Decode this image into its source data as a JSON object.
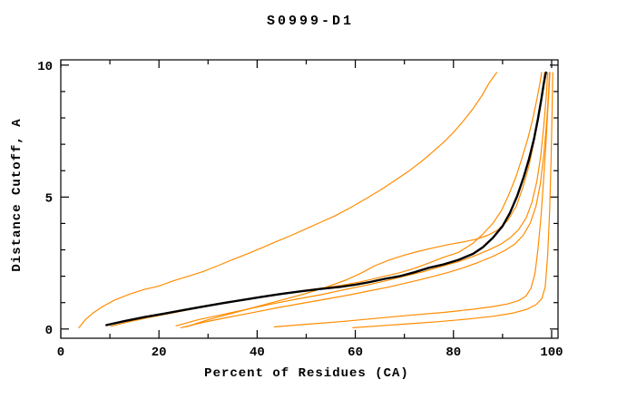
{
  "title": "S0999-D1",
  "background": "#ffffff",
  "chart_data": {
    "type": "line",
    "title": "S0999-D1",
    "xlabel": "Percent of Residues (CA)",
    "ylabel": "Distance Cutoff, A",
    "xlim": [
      0,
      101.3
    ],
    "ylim": [
      -0.35,
      10.2
    ],
    "x_major_ticks": [
      0,
      20,
      40,
      60,
      80,
      100
    ],
    "x_minor_ticks": [
      10,
      30,
      50,
      70,
      90
    ],
    "y_major_ticks": [
      0,
      5,
      10
    ],
    "y_minor_ticks": [
      1,
      2,
      3,
      4,
      6,
      7,
      8,
      9
    ],
    "grid": false,
    "legend_position": "none",
    "colors": {
      "model": "#000000",
      "reference": "#ff8c00"
    },
    "series": [
      {
        "name": "reference-steep",
        "role": "reference",
        "color": "#ff8c00",
        "points": [
          [
            3.7,
            0.05
          ],
          [
            5,
            0.35
          ],
          [
            6.5,
            0.6
          ],
          [
            8.5,
            0.85
          ],
          [
            11,
            1.1
          ],
          [
            14,
            1.32
          ],
          [
            17,
            1.5
          ],
          [
            20,
            1.63
          ],
          [
            23,
            1.83
          ],
          [
            26,
            2.0
          ],
          [
            29,
            2.18
          ],
          [
            32,
            2.4
          ],
          [
            35,
            2.63
          ],
          [
            38,
            2.85
          ],
          [
            41,
            3.08
          ],
          [
            44,
            3.32
          ],
          [
            47,
            3.55
          ],
          [
            50,
            3.8
          ],
          [
            53,
            4.05
          ],
          [
            56,
            4.3
          ],
          [
            59,
            4.6
          ],
          [
            62,
            4.92
          ],
          [
            65,
            5.25
          ],
          [
            68,
            5.62
          ],
          [
            71,
            6.0
          ],
          [
            73.5,
            6.35
          ],
          [
            76,
            6.75
          ],
          [
            78,
            7.08
          ],
          [
            80,
            7.45
          ],
          [
            82,
            7.88
          ],
          [
            84,
            8.35
          ],
          [
            85.8,
            8.85
          ],
          [
            87.2,
            9.3
          ],
          [
            88.3,
            9.6
          ],
          [
            88.8,
            9.72
          ]
        ]
      },
      {
        "name": "reference-hug",
        "role": "reference",
        "color": "#ff8c00",
        "points": [
          [
            10.2,
            0.1
          ],
          [
            14,
            0.28
          ],
          [
            18,
            0.44
          ],
          [
            22,
            0.58
          ],
          [
            26,
            0.73
          ],
          [
            30,
            0.87
          ],
          [
            34,
            1.0
          ],
          [
            38,
            1.13
          ],
          [
            42,
            1.25
          ],
          [
            46,
            1.37
          ],
          [
            50,
            1.47
          ],
          [
            54,
            1.57
          ],
          [
            57,
            1.65
          ],
          [
            60,
            1.75
          ],
          [
            63,
            1.87
          ],
          [
            66,
            2.0
          ],
          [
            69,
            2.13
          ],
          [
            72,
            2.3
          ],
          [
            75,
            2.5
          ],
          [
            78,
            2.72
          ],
          [
            81,
            2.9
          ],
          [
            84,
            3.25
          ],
          [
            86,
            3.6
          ],
          [
            88,
            4.0
          ],
          [
            89.8,
            4.5
          ],
          [
            91.3,
            5.1
          ],
          [
            92.8,
            5.8
          ],
          [
            94,
            6.5
          ],
          [
            95.2,
            7.25
          ],
          [
            96.2,
            8.0
          ],
          [
            97,
            8.7
          ],
          [
            97.6,
            9.3
          ],
          [
            97.95,
            9.72
          ]
        ]
      },
      {
        "name": "reference-upper",
        "role": "reference",
        "color": "#ff8c00",
        "points": [
          [
            25.5,
            0.08
          ],
          [
            30,
            0.35
          ],
          [
            34,
            0.55
          ],
          [
            38,
            0.75
          ],
          [
            42,
            0.95
          ],
          [
            46,
            1.15
          ],
          [
            50,
            1.35
          ],
          [
            54,
            1.58
          ],
          [
            58,
            1.85
          ],
          [
            61,
            2.1
          ],
          [
            64,
            2.4
          ],
          [
            67,
            2.62
          ],
          [
            70,
            2.8
          ],
          [
            73,
            2.95
          ],
          [
            76,
            3.08
          ],
          [
            79,
            3.2
          ],
          [
            82,
            3.3
          ],
          [
            84.5,
            3.4
          ],
          [
            87,
            3.55
          ],
          [
            89,
            3.75
          ],
          [
            91,
            4.1
          ],
          [
            92.8,
            4.65
          ],
          [
            94.2,
            5.4
          ],
          [
            95.4,
            6.2
          ],
          [
            96.4,
            7.1
          ],
          [
            97.3,
            8.0
          ],
          [
            98,
            8.9
          ],
          [
            98.4,
            9.4
          ],
          [
            98.55,
            9.72
          ]
        ]
      },
      {
        "name": "reference-mid1",
        "role": "reference",
        "color": "#ff8c00",
        "points": [
          [
            23.5,
            0.12
          ],
          [
            28,
            0.35
          ],
          [
            33,
            0.55
          ],
          [
            38,
            0.75
          ],
          [
            43,
            0.95
          ],
          [
            48,
            1.13
          ],
          [
            53,
            1.3
          ],
          [
            58,
            1.5
          ],
          [
            62,
            1.65
          ],
          [
            66,
            1.82
          ],
          [
            70,
            2.0
          ],
          [
            74,
            2.18
          ],
          [
            78,
            2.4
          ],
          [
            81,
            2.55
          ],
          [
            84,
            2.75
          ],
          [
            87,
            2.98
          ],
          [
            89.5,
            3.2
          ],
          [
            91.5,
            3.45
          ],
          [
            93.2,
            3.75
          ],
          [
            94.8,
            4.2
          ],
          [
            96,
            4.8
          ],
          [
            97,
            5.6
          ],
          [
            97.8,
            6.6
          ],
          [
            98.4,
            7.7
          ],
          [
            98.9,
            8.8
          ],
          [
            99.2,
            9.72
          ]
        ]
      },
      {
        "name": "reference-mid2",
        "role": "reference",
        "color": "#ff8c00",
        "points": [
          [
            24.5,
            0.05
          ],
          [
            29,
            0.25
          ],
          [
            34,
            0.44
          ],
          [
            39,
            0.62
          ],
          [
            44,
            0.8
          ],
          [
            49,
            0.97
          ],
          [
            54,
            1.13
          ],
          [
            59,
            1.3
          ],
          [
            63,
            1.45
          ],
          [
            67,
            1.6
          ],
          [
            71,
            1.77
          ],
          [
            75,
            1.95
          ],
          [
            79,
            2.15
          ],
          [
            82,
            2.32
          ],
          [
            85,
            2.52
          ],
          [
            88,
            2.75
          ],
          [
            90.5,
            2.98
          ],
          [
            92.5,
            3.22
          ],
          [
            94.2,
            3.55
          ],
          [
            95.6,
            4.0
          ],
          [
            96.8,
            4.65
          ],
          [
            97.7,
            5.5
          ],
          [
            98.4,
            6.6
          ],
          [
            99,
            7.9
          ],
          [
            99.4,
            9.0
          ],
          [
            99.55,
            9.72
          ]
        ]
      },
      {
        "name": "reference-low1",
        "role": "reference",
        "color": "#ff8c00",
        "points": [
          [
            43.5,
            0.08
          ],
          [
            50,
            0.18
          ],
          [
            57,
            0.28
          ],
          [
            64,
            0.4
          ],
          [
            71,
            0.52
          ],
          [
            78,
            0.63
          ],
          [
            84,
            0.75
          ],
          [
            88,
            0.85
          ],
          [
            91,
            0.95
          ],
          [
            93.3,
            1.08
          ],
          [
            94.8,
            1.25
          ],
          [
            95.8,
            1.55
          ],
          [
            96.6,
            2.1
          ],
          [
            97.2,
            3.0
          ],
          [
            97.8,
            4.2
          ],
          [
            98.3,
            5.5
          ],
          [
            98.8,
            6.9
          ],
          [
            99.2,
            8.2
          ],
          [
            99.5,
            9.2
          ],
          [
            99.65,
            9.72
          ]
        ]
      },
      {
        "name": "reference-low2",
        "role": "reference",
        "color": "#ff8c00",
        "points": [
          [
            59.5,
            0.05
          ],
          [
            65,
            0.12
          ],
          [
            71,
            0.2
          ],
          [
            77,
            0.28
          ],
          [
            83,
            0.38
          ],
          [
            88,
            0.48
          ],
          [
            92,
            0.6
          ],
          [
            95,
            0.75
          ],
          [
            96.8,
            0.92
          ],
          [
            98,
            1.15
          ],
          [
            98.7,
            1.6
          ],
          [
            99.2,
            2.8
          ],
          [
            99.6,
            4.5
          ],
          [
            99.9,
            6.5
          ],
          [
            100.1,
            8.3
          ],
          [
            100.2,
            9.4
          ],
          [
            100.25,
            9.72
          ]
        ]
      },
      {
        "name": "model-black",
        "role": "model",
        "color": "#000000",
        "points": [
          [
            9.3,
            0.15
          ],
          [
            13,
            0.3
          ],
          [
            17,
            0.45
          ],
          [
            21,
            0.58
          ],
          [
            25,
            0.72
          ],
          [
            29,
            0.85
          ],
          [
            33,
            0.98
          ],
          [
            37,
            1.1
          ],
          [
            41,
            1.22
          ],
          [
            45,
            1.33
          ],
          [
            49,
            1.43
          ],
          [
            53,
            1.52
          ],
          [
            57,
            1.6
          ],
          [
            60,
            1.68
          ],
          [
            63,
            1.78
          ],
          [
            66,
            1.9
          ],
          [
            69,
            2.0
          ],
          [
            72,
            2.15
          ],
          [
            75,
            2.32
          ],
          [
            78,
            2.45
          ],
          [
            81,
            2.62
          ],
          [
            84,
            2.85
          ],
          [
            86,
            3.1
          ],
          [
            88,
            3.45
          ],
          [
            90,
            3.9
          ],
          [
            91.5,
            4.4
          ],
          [
            93,
            5.05
          ],
          [
            94.3,
            5.75
          ],
          [
            95.4,
            6.45
          ],
          [
            96.4,
            7.2
          ],
          [
            97.2,
            7.95
          ],
          [
            97.9,
            8.7
          ],
          [
            98.4,
            9.3
          ],
          [
            98.7,
            9.6
          ],
          [
            98.85,
            9.72
          ]
        ]
      }
    ]
  }
}
